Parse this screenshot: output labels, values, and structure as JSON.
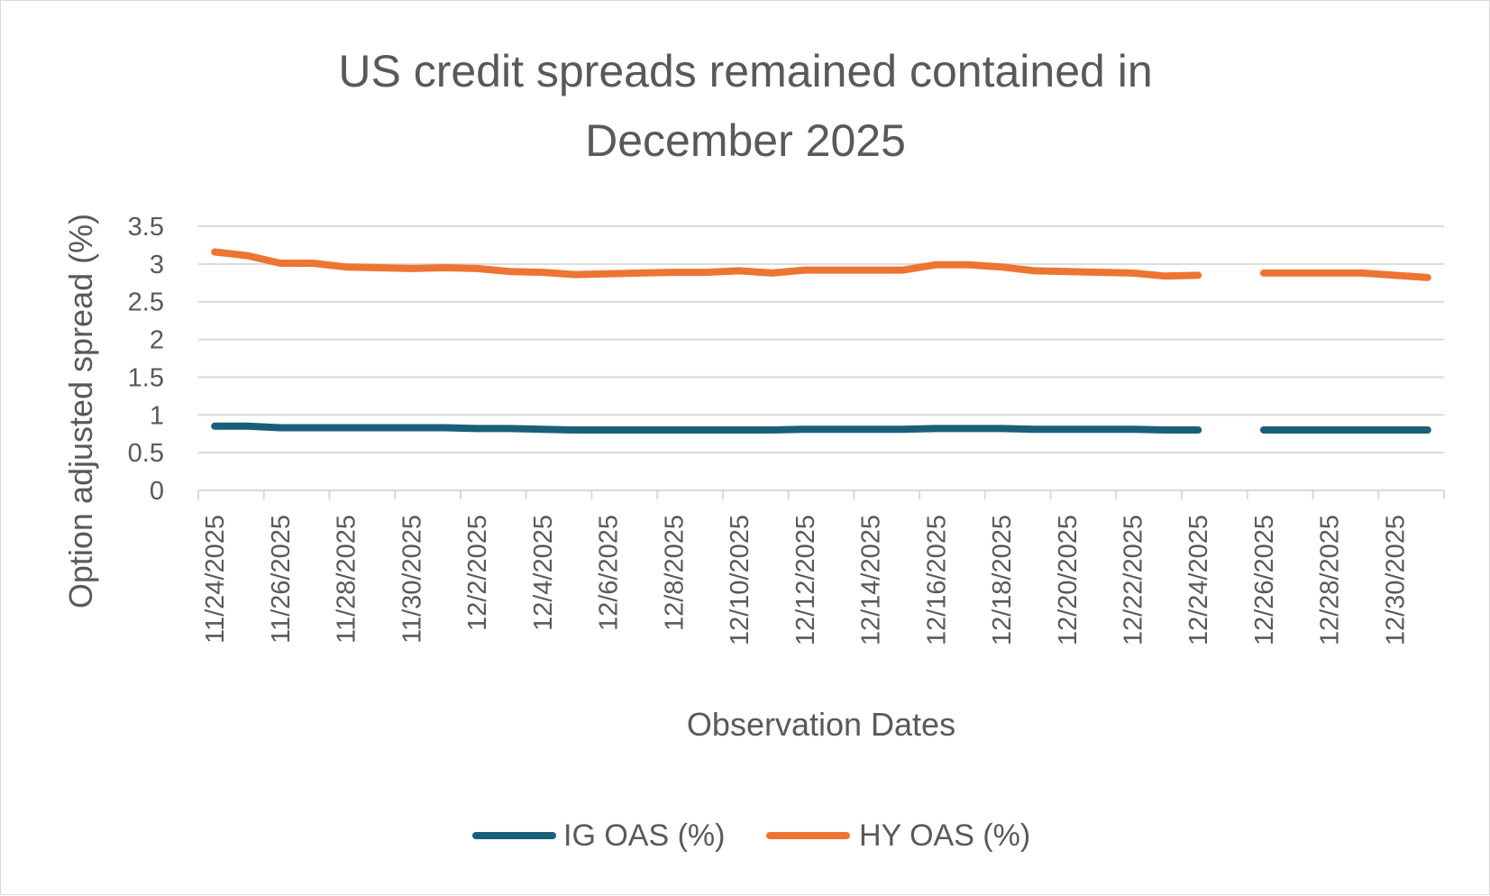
{
  "chart_data": {
    "type": "line",
    "title_lines": [
      "US credit spreads remained contained in",
      "December 2025"
    ],
    "xlabel": "Observation Dates",
    "ylabel": "Option adjusted spread (%)",
    "ylim": [
      0,
      3.5
    ],
    "yticks": [
      "0",
      "0.5",
      "1",
      "1.5",
      "2",
      "2.5",
      "3",
      "3.5"
    ],
    "grid": true,
    "legend_position": "bottom",
    "x_tick_labels": [
      "11/24/2025",
      "11/26/2025",
      "11/28/2025",
      "11/30/2025",
      "12/2/2025",
      "12/4/2025",
      "12/6/2025",
      "12/8/2025",
      "12/10/2025",
      "12/12/2025",
      "12/14/2025",
      "12/16/2025",
      "12/18/2025",
      "12/20/2025",
      "12/22/2025",
      "12/24/2025",
      "12/26/2025",
      "12/28/2025",
      "12/30/2025"
    ],
    "categories": [
      "11/24/2025",
      "11/25/2025",
      "11/26/2025",
      "11/27/2025",
      "11/28/2025",
      "11/29/2025",
      "11/30/2025",
      "12/1/2025",
      "12/2/2025",
      "12/3/2025",
      "12/4/2025",
      "12/5/2025",
      "12/6/2025",
      "12/7/2025",
      "12/8/2025",
      "12/9/2025",
      "12/10/2025",
      "12/11/2025",
      "12/12/2025",
      "12/13/2025",
      "12/14/2025",
      "12/15/2025",
      "12/16/2025",
      "12/17/2025",
      "12/18/2025",
      "12/19/2025",
      "12/20/2025",
      "12/21/2025",
      "12/22/2025",
      "12/23/2025",
      "12/24/2025",
      "12/25/2025",
      "12/26/2025",
      "12/27/2025",
      "12/28/2025",
      "12/29/2025",
      "12/30/2025",
      "12/31/2025"
    ],
    "series": [
      {
        "name": "IG OAS (%)",
        "color": "#1a5f7a",
        "values": [
          0.85,
          0.85,
          0.83,
          0.83,
          0.83,
          0.83,
          0.83,
          0.83,
          0.82,
          0.82,
          0.81,
          0.8,
          0.8,
          0.8,
          0.8,
          0.8,
          0.8,
          0.8,
          0.81,
          0.81,
          0.81,
          0.81,
          0.82,
          0.82,
          0.82,
          0.81,
          0.81,
          0.81,
          0.81,
          0.8,
          0.8,
          null,
          0.8,
          0.8,
          0.8,
          0.8,
          0.8,
          0.8
        ]
      },
      {
        "name": "HY OAS (%)",
        "color": "#ed7533",
        "values": [
          3.16,
          3.11,
          3.01,
          3.01,
          2.96,
          2.95,
          2.94,
          2.95,
          2.94,
          2.9,
          2.89,
          2.86,
          2.87,
          2.88,
          2.89,
          2.89,
          2.91,
          2.88,
          2.92,
          2.92,
          2.92,
          2.92,
          2.99,
          2.99,
          2.96,
          2.91,
          2.9,
          2.89,
          2.88,
          2.84,
          2.85,
          null,
          2.88,
          2.88,
          2.88,
          2.88,
          2.85,
          2.82
        ]
      }
    ]
  }
}
